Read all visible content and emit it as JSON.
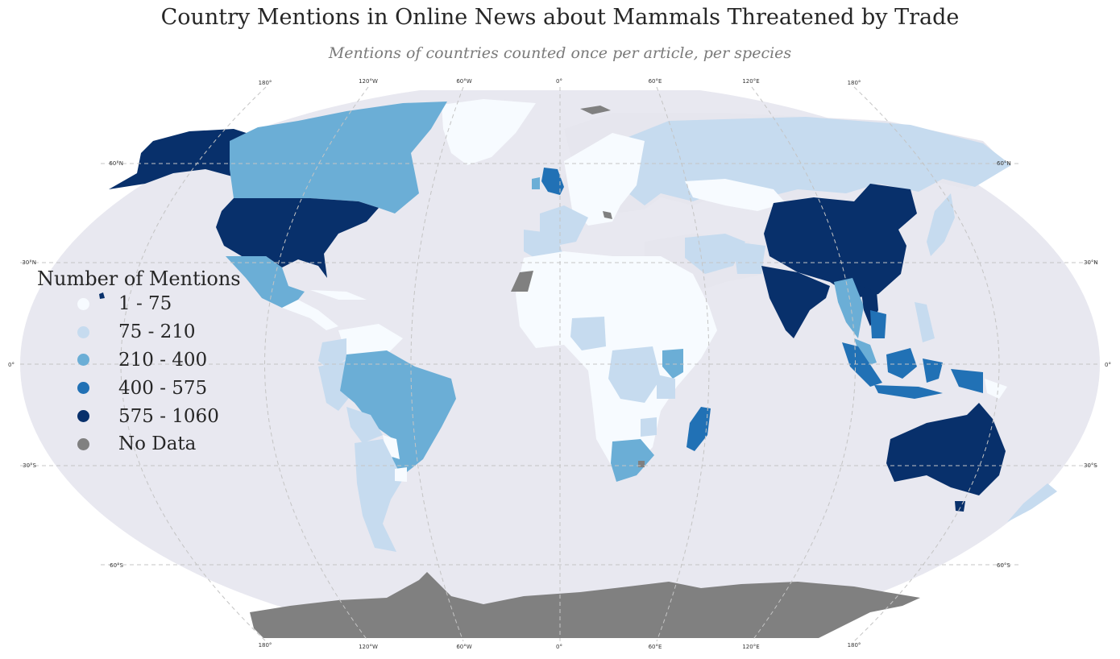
{
  "title": "Country Mentions in Online News about Mammals Threatened by Trade",
  "subtitle": "Mentions of countries counted once per article, per species",
  "legend": {
    "title": "Number of Mentions",
    "items": [
      {
        "label": "1 - 75",
        "color": "#f7fbff"
      },
      {
        "label": "75 - 210",
        "color": "#c6dbef"
      },
      {
        "label": "210 - 400",
        "color": "#6baed6"
      },
      {
        "label": "400 - 575",
        "color": "#2171b5"
      },
      {
        "label": "575 - 1060",
        "color": "#08306b"
      },
      {
        "label": "No Data",
        "color": "#808080"
      }
    ]
  },
  "colors": {
    "ocean": "#e8e8f0",
    "land_no_mention": "#e6e6ee",
    "graticule": "#c4c4c4"
  },
  "graticule": {
    "lon_top": [
      "180°",
      "120°W",
      "60°W",
      "0°",
      "60°E",
      "120°E",
      "180°"
    ],
    "lon_bottom": [
      "180°",
      "120°W",
      "60°W",
      "0°",
      "60°E",
      "120°E",
      "180°"
    ],
    "lat_left": [
      "60°N",
      "30°N",
      "0°",
      "30°S",
      "60°S"
    ],
    "lat_right": [
      "60°N",
      "30°N",
      "0°",
      "30°S",
      "60°S"
    ]
  },
  "regions": [
    {
      "name": "United States",
      "class": "575 - 1060"
    },
    {
      "name": "Alaska",
      "class": "575 - 1060"
    },
    {
      "name": "China",
      "class": "575 - 1060"
    },
    {
      "name": "India",
      "class": "575 - 1060"
    },
    {
      "name": "Australia",
      "class": "575 - 1060"
    },
    {
      "name": "Vietnam",
      "class": "575 - 1060"
    },
    {
      "name": "United Kingdom",
      "class": "400 - 575"
    },
    {
      "name": "Madagascar",
      "class": "400 - 575"
    },
    {
      "name": "Indonesia",
      "class": "400 - 575"
    },
    {
      "name": "Papua New Guinea",
      "class": "400 - 575"
    },
    {
      "name": "Canada",
      "class": "210 - 400"
    },
    {
      "name": "Mexico",
      "class": "210 - 400"
    },
    {
      "name": "Brazil",
      "class": "210 - 400"
    },
    {
      "name": "Kenya",
      "class": "210 - 400"
    },
    {
      "name": "South Africa",
      "class": "210 - 400"
    },
    {
      "name": "Thailand",
      "class": "210 - 400"
    },
    {
      "name": "Malaysia",
      "class": "210 - 400"
    },
    {
      "name": "Russia",
      "class": "75 - 210"
    },
    {
      "name": "Japan",
      "class": "75 - 210"
    },
    {
      "name": "Philippines",
      "class": "75 - 210"
    },
    {
      "name": "New Zealand",
      "class": "75 - 210"
    },
    {
      "name": "Peru",
      "class": "75 - 210"
    },
    {
      "name": "Colombia",
      "class": "75 - 210"
    },
    {
      "name": "Argentina",
      "class": "75 - 210"
    },
    {
      "name": "Bolivia",
      "class": "75 - 210"
    },
    {
      "name": "Nigeria",
      "class": "75 - 210"
    },
    {
      "name": "Congo",
      "class": "75 - 210"
    },
    {
      "name": "Tanzania",
      "class": "75 - 210"
    },
    {
      "name": "Zimbabwe",
      "class": "75 - 210"
    },
    {
      "name": "France",
      "class": "75 - 210"
    },
    {
      "name": "Iran",
      "class": "75 - 210"
    },
    {
      "name": "Pakistan",
      "class": "75 - 210"
    },
    {
      "name": "Greenland",
      "class": "1 - 75"
    },
    {
      "name": "Africa (other)",
      "class": "1 - 75"
    },
    {
      "name": "Mongolia",
      "class": "1 - 75"
    },
    {
      "name": "Europe (other)",
      "class": "1 - 75"
    },
    {
      "name": "Western Sahara",
      "class": "No Data"
    },
    {
      "name": "Antarctica",
      "class": "No Data"
    },
    {
      "name": "Svalbard",
      "class": "No Data"
    }
  ]
}
